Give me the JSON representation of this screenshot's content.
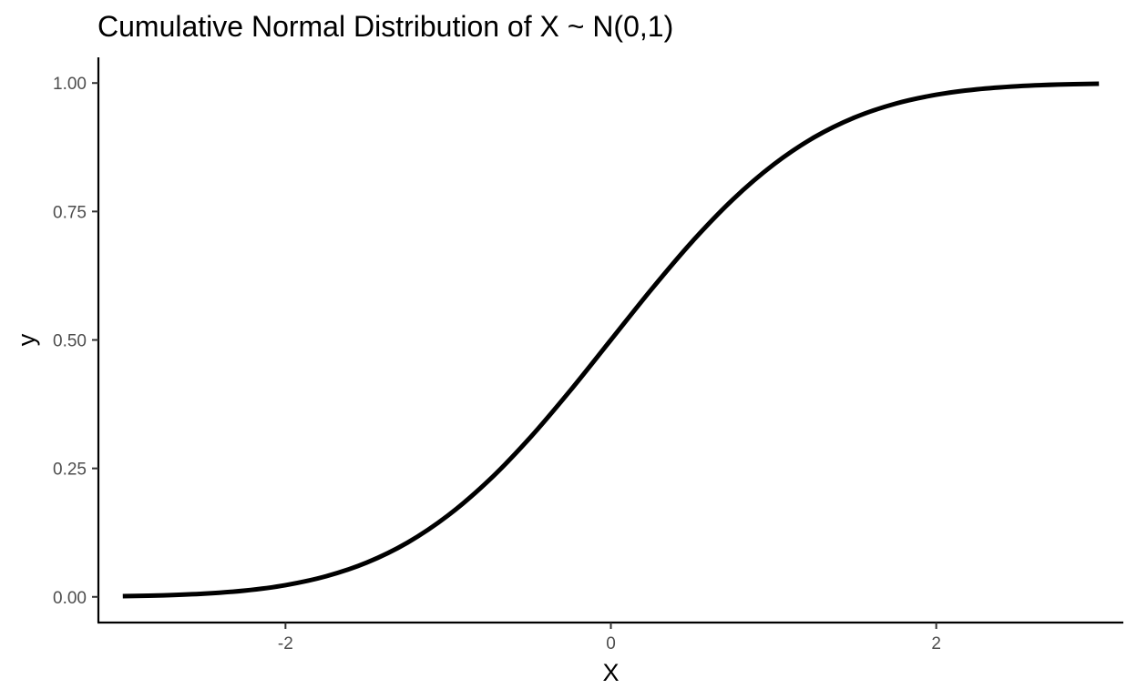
{
  "chart_data": {
    "type": "line",
    "title": "Cumulative Normal Distribution of X ~ N(0,1)",
    "xlabel": "X",
    "ylabel": "y",
    "xlim": [
      -3.15,
      3.15
    ],
    "ylim": [
      -0.05,
      1.05
    ],
    "x_ticks": [
      -2,
      0,
      2
    ],
    "y_ticks": [
      0.0,
      0.25,
      0.5,
      0.75,
      1.0
    ],
    "x_tick_labels": [
      "-2",
      "0",
      "2"
    ],
    "y_tick_labels": [
      "0.00",
      "0.25",
      "0.50",
      "0.75",
      "1.00"
    ],
    "grid": false,
    "legend": "none",
    "series": [
      {
        "color": "#000000",
        "x": [
          -3.0,
          -2.75,
          -2.5,
          -2.25,
          -2.0,
          -1.75,
          -1.5,
          -1.25,
          -1.0,
          -0.75,
          -0.5,
          -0.25,
          0.0,
          0.25,
          0.5,
          0.75,
          1.0,
          1.25,
          1.5,
          1.75,
          2.0,
          2.25,
          2.5,
          2.75,
          3.0
        ],
        "y": [
          0.0013,
          0.003,
          0.0062,
          0.0122,
          0.0228,
          0.0401,
          0.0668,
          0.1056,
          0.1587,
          0.2266,
          0.3085,
          0.4013,
          0.5,
          0.5987,
          0.6915,
          0.7734,
          0.8413,
          0.8944,
          0.9332,
          0.9599,
          0.9772,
          0.9878,
          0.9938,
          0.997,
          0.9987
        ]
      }
    ]
  }
}
